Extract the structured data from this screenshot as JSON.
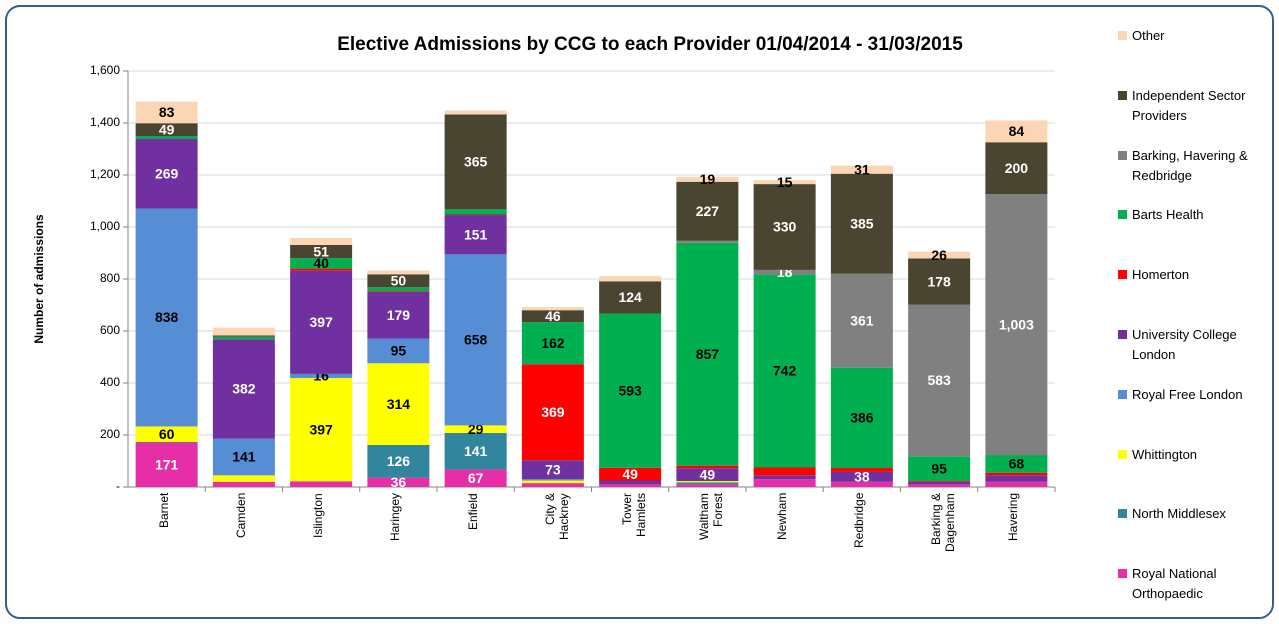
{
  "chart_data": {
    "type": "bar",
    "stacked": true,
    "title": "Elective Admissions by CCG to each Provider 01/04/2014 - 31/03/2015",
    "y_label": "Number of admissions",
    "categories": [
      "Barnet",
      "Camden",
      "Islington",
      "Haringey",
      "Enfield",
      "City & Hackney",
      "Tower Hamlets",
      "Waltham Forest",
      "Newham",
      "Redbridge",
      "Barking & Dagenham",
      "Havering"
    ],
    "ylim": [
      0,
      1600
    ],
    "yticks": [
      {
        "value": 0,
        "label": "-"
      },
      200,
      400,
      600,
      800,
      {
        "value": 1000,
        "label": "1,000"
      },
      {
        "value": 1200,
        "label": "1,200"
      },
      {
        "value": 1400,
        "label": "1,400"
      },
      {
        "value": 1600,
        "label": "1,600"
      }
    ],
    "grid": true,
    "legend": "right",
    "series": [
      {
        "name": "Royal National Orthopaedic",
        "color": "#e62ea8",
        "label_color": "#ffffff",
        "values": [
          171,
          20,
          22,
          36,
          67,
          15,
          10,
          10,
          30,
          20,
          10,
          20
        ],
        "value_labels": [
          "171",
          null,
          null,
          "36",
          "67",
          null,
          null,
          null,
          null,
          null,
          null,
          null
        ]
      },
      {
        "name": "North Middlesex",
        "color": "#31859c",
        "label_color": "#ffffff",
        "values": [
          2,
          0,
          0,
          126,
          141,
          0,
          0,
          8,
          0,
          0,
          0,
          0
        ],
        "value_labels": [
          null,
          null,
          null,
          "126",
          "141",
          null,
          null,
          null,
          null,
          null,
          null,
          null
        ]
      },
      {
        "name": "Whittington",
        "color": "#ffff00",
        "label_color": "#000000",
        "values": [
          60,
          25,
          397,
          314,
          29,
          10,
          0,
          5,
          0,
          0,
          0,
          0
        ],
        "value_labels": [
          "60",
          null,
          "397",
          "314",
          "29",
          null,
          null,
          null,
          null,
          null,
          null,
          null
        ]
      },
      {
        "name": "Royal Free London",
        "color": "#558ed5",
        "label_color": "#000000",
        "values": [
          838,
          141,
          16,
          95,
          658,
          5,
          0,
          0,
          0,
          0,
          0,
          0
        ],
        "value_labels": [
          "838",
          "141",
          "16",
          "95",
          "658",
          null,
          null,
          null,
          null,
          null,
          null,
          null
        ]
      },
      {
        "name": "University College London",
        "color": "#7030a0",
        "label_color": "#ffffff",
        "values": [
          269,
          382,
          397,
          179,
          151,
          73,
          15,
          49,
          15,
          38,
          10,
          25
        ],
        "value_labels": [
          "269",
          "382",
          "397",
          "179",
          "151",
          "73",
          null,
          "49",
          null,
          "38",
          null,
          null
        ]
      },
      {
        "name": "Homerton",
        "color": "#ff0000",
        "label_color": "#ffffff",
        "values": [
          0,
          0,
          8,
          3,
          2,
          369,
          49,
          10,
          30,
          15,
          3,
          10
        ],
        "value_labels": [
          null,
          null,
          null,
          null,
          null,
          "369",
          "49",
          null,
          null,
          null,
          null,
          null
        ]
      },
      {
        "name": "Barts Health",
        "color": "#00b050",
        "label_color": "#000000",
        "values": [
          10,
          10,
          40,
          15,
          20,
          162,
          593,
          857,
          742,
          386,
          95,
          68
        ],
        "value_labels": [
          null,
          null,
          "40",
          null,
          null,
          "162",
          "593",
          "857",
          "742",
          "386",
          "95",
          "68"
        ]
      },
      {
        "name": "Barking, Havering & Redbridge",
        "color": "#808080",
        "label_color": "#ffffff",
        "values": [
          0,
          0,
          0,
          0,
          0,
          0,
          0,
          8,
          18,
          361,
          583,
          1003
        ],
        "value_labels": [
          null,
          null,
          null,
          null,
          null,
          null,
          null,
          null,
          "18",
          "361",
          "583",
          "1,003"
        ]
      },
      {
        "name": "Independent Sector Providers",
        "color": "#4a4530",
        "label_color": "#ffffff",
        "values": [
          49,
          5,
          51,
          50,
          365,
          46,
          124,
          227,
          330,
          385,
          178,
          200
        ],
        "value_labels": [
          "49",
          null,
          "51",
          "50",
          "365",
          "46",
          "124",
          "227",
          "330",
          "385",
          "178",
          "200"
        ]
      },
      {
        "name": "Other",
        "color": "#fcd5b5",
        "label_color": "#000000",
        "values": [
          83,
          30,
          27,
          15,
          15,
          12,
          20,
          19,
          15,
          31,
          26,
          84
        ],
        "value_labels": [
          "83",
          null,
          null,
          null,
          null,
          null,
          null,
          "19",
          "15",
          "31",
          "26",
          "84"
        ]
      }
    ]
  }
}
